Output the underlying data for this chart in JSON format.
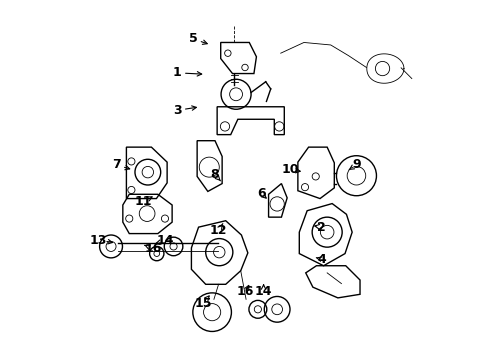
{
  "bg_color": "#ffffff",
  "line_color": "#000000",
  "label_color": "#000000",
  "font_size_labels": 9,
  "font_size_bold": true,
  "labels": [
    {
      "num": "5",
      "xl": 0.355,
      "yl": 0.895,
      "xe": 0.405,
      "ye": 0.878
    },
    {
      "num": "1",
      "xl": 0.31,
      "yl": 0.8,
      "xe": 0.39,
      "ye": 0.796
    },
    {
      "num": "3",
      "xl": 0.31,
      "yl": 0.695,
      "xe": 0.375,
      "ye": 0.705
    },
    {
      "num": "8",
      "xl": 0.415,
      "yl": 0.515,
      "xe": 0.432,
      "ye": 0.497
    },
    {
      "num": "7",
      "xl": 0.14,
      "yl": 0.542,
      "xe": 0.188,
      "ye": 0.528
    },
    {
      "num": "11",
      "xl": 0.215,
      "yl": 0.44,
      "xe": 0.25,
      "ye": 0.458
    },
    {
      "num": "13",
      "xl": 0.09,
      "yl": 0.332,
      "xe": 0.14,
      "ye": 0.323
    },
    {
      "num": "14",
      "xl": 0.278,
      "yl": 0.33,
      "xe": 0.248,
      "ye": 0.322
    },
    {
      "num": "16",
      "xl": 0.242,
      "yl": 0.308,
      "xe": 0.218,
      "ye": 0.318
    },
    {
      "num": "12",
      "xl": 0.425,
      "yl": 0.358,
      "xe": 0.438,
      "ye": 0.378
    },
    {
      "num": "15",
      "xl": 0.382,
      "yl": 0.155,
      "xe": 0.402,
      "ye": 0.178
    },
    {
      "num": "16",
      "xl": 0.502,
      "yl": 0.188,
      "xe": 0.512,
      "ye": 0.208
    },
    {
      "num": "14",
      "xl": 0.552,
      "yl": 0.188,
      "xe": 0.552,
      "ye": 0.21
    },
    {
      "num": "6",
      "xl": 0.545,
      "yl": 0.462,
      "xe": 0.562,
      "ye": 0.447
    },
    {
      "num": "2",
      "xl": 0.715,
      "yl": 0.368,
      "xe": 0.692,
      "ye": 0.372
    },
    {
      "num": "4",
      "xl": 0.715,
      "yl": 0.278,
      "xe": 0.698,
      "ye": 0.283
    },
    {
      "num": "10",
      "xl": 0.628,
      "yl": 0.528,
      "xe": 0.658,
      "ye": 0.524
    },
    {
      "num": "9",
      "xl": 0.812,
      "yl": 0.542,
      "xe": 0.79,
      "ye": 0.528
    }
  ]
}
